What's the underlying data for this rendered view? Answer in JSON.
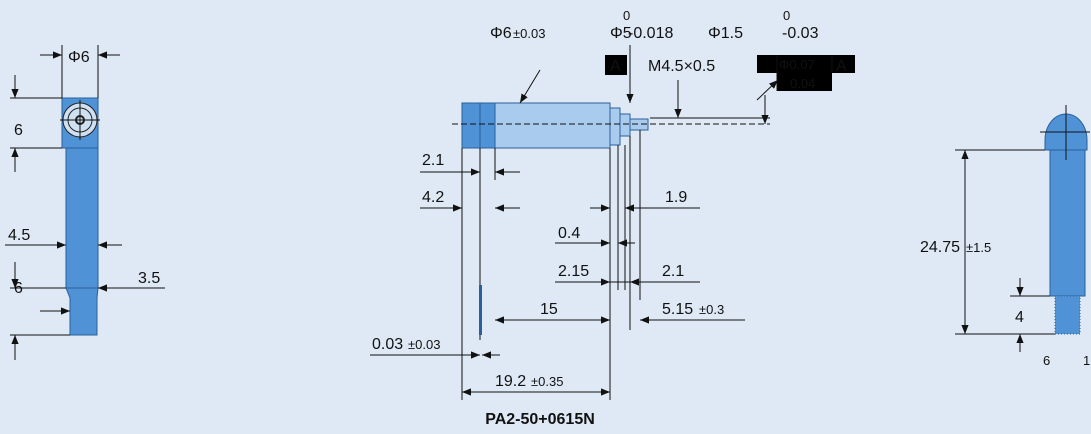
{
  "left_view": {
    "diameter": "Φ6",
    "head_height": "6",
    "shaft_width": "4.5",
    "tip_length": "6",
    "tip_width": "3.5"
  },
  "center_view": {
    "body_diameter": "Φ6",
    "body_tolerance": "±0.03",
    "step_diameter": "Φ5",
    "step_upper": "0",
    "step_lower": "-0.018",
    "pin_diameter": "Φ1.5",
    "pin_upper": "0",
    "pin_lower": "-0.03",
    "datum": "A",
    "thread": "M4.5×0.5",
    "concentricity": "Φ0.07",
    "concentricity_datum": "A",
    "runout": "0.04",
    "dim_2_1": "2.1",
    "dim_4_2": "4.2",
    "dim_1_9": "1.9",
    "dim_0_4": "0.4",
    "dim_2_15": "2.15",
    "dim_2_1b": "2.1",
    "dim_15": "15",
    "dim_5_15": "5.15",
    "dim_5_15_tol": "±0.3",
    "dim_0_03": "0.03",
    "dim_0_03_tol": "±0.03",
    "dim_19_2": "19.2",
    "dim_19_2_tol": "±0.35"
  },
  "right_view": {
    "length": "24.75",
    "length_tol": "±1.5",
    "tip_length": "4",
    "tip_width": "6",
    "bristle": "1"
  },
  "caption": "PA2-50+0615N"
}
